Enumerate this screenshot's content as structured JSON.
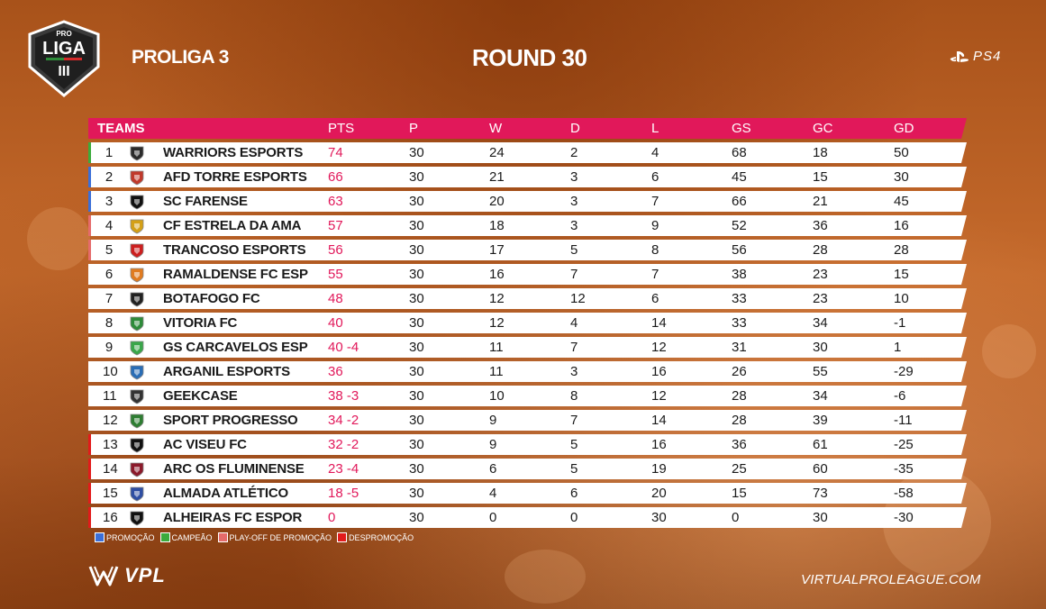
{
  "header": {
    "logo_text_top": "PRO",
    "logo_text_main": "LIGA",
    "logo_text_num": "III",
    "league_name": "PROLIGA 3",
    "round": "ROUND 30",
    "platform": "PS4"
  },
  "table": {
    "columns": {
      "teams": "TEAMS",
      "pts": "PTS",
      "p": "P",
      "w": "W",
      "d": "D",
      "l": "L",
      "gs": "GS",
      "gc": "GC",
      "gd": "GD"
    },
    "rows": [
      {
        "pos": "1",
        "team": "WARRIORS ESPORTS",
        "pts": "74",
        "p": "30",
        "w": "24",
        "d": "2",
        "l": "4",
        "gs": "68",
        "gc": "18",
        "gd": "50",
        "status": "#3cab3c",
        "crest": "#2b2b2b"
      },
      {
        "pos": "2",
        "team": "AFD TORRE ESPORTS",
        "pts": "66",
        "p": "30",
        "w": "21",
        "d": "3",
        "l": "6",
        "gs": "45",
        "gc": "15",
        "gd": "30",
        "status": "#3b6fd8",
        "crest": "#c0392b"
      },
      {
        "pos": "3",
        "team": "SC FARENSE",
        "pts": "63",
        "p": "30",
        "w": "20",
        "d": "3",
        "l": "7",
        "gs": "66",
        "gc": "21",
        "gd": "45",
        "status": "#3b6fd8",
        "crest": "#111111"
      },
      {
        "pos": "4",
        "team": "CF ESTRELA DA AMA",
        "pts": "57",
        "p": "30",
        "w": "18",
        "d": "3",
        "l": "9",
        "gs": "52",
        "gc": "36",
        "gd": "16",
        "status": "#e56b6b",
        "crest": "#d4a017"
      },
      {
        "pos": "5",
        "team": "TRANCOSO ESPORTS",
        "pts": "56",
        "p": "30",
        "w": "17",
        "d": "5",
        "l": "8",
        "gs": "56",
        "gc": "28",
        "gd": "28",
        "status": "#e56b6b",
        "crest": "#cc1f1f"
      },
      {
        "pos": "6",
        "team": "RAMALDENSE FC ESP",
        "pts": "55",
        "p": "30",
        "w": "16",
        "d": "7",
        "l": "7",
        "gs": "38",
        "gc": "23",
        "gd": "15",
        "status": "",
        "crest": "#e07b20"
      },
      {
        "pos": "7",
        "team": "BOTAFOGO FC",
        "pts": "48",
        "p": "30",
        "w": "12",
        "d": "12",
        "l": "6",
        "gs": "33",
        "gc": "23",
        "gd": "10",
        "status": "",
        "crest": "#222222"
      },
      {
        "pos": "8",
        "team": "VITORIA FC",
        "pts": "40",
        "p": "30",
        "w": "12",
        "d": "4",
        "l": "14",
        "gs": "33",
        "gc": "34",
        "gd": "-1",
        "status": "",
        "crest": "#2e8b3a"
      },
      {
        "pos": "9",
        "team": "GS CARCAVELOS ESP",
        "pts": "40 -4",
        "p": "30",
        "w": "11",
        "d": "7",
        "l": "12",
        "gs": "31",
        "gc": "30",
        "gd": "1",
        "status": "",
        "crest": "#3aa64a"
      },
      {
        "pos": "10",
        "team": "ARGANIL ESPORTS",
        "pts": "36",
        "p": "30",
        "w": "11",
        "d": "3",
        "l": "16",
        "gs": "26",
        "gc": "55",
        "gd": "-29",
        "status": "",
        "crest": "#2a6db5"
      },
      {
        "pos": "11",
        "team": "GEEKCASE",
        "pts": "38 -3",
        "p": "30",
        "w": "10",
        "d": "8",
        "l": "12",
        "gs": "28",
        "gc": "34",
        "gd": "-6",
        "status": "",
        "crest": "#333333"
      },
      {
        "pos": "12",
        "team": "SPORT PROGRESSO",
        "pts": "34 -2",
        "p": "30",
        "w": "9",
        "d": "7",
        "l": "14",
        "gs": "28",
        "gc": "39",
        "gd": "-11",
        "status": "",
        "crest": "#2e7d32"
      },
      {
        "pos": "13",
        "team": "AC VISEU FC",
        "pts": "32 -2",
        "p": "30",
        "w": "9",
        "d": "5",
        "l": "16",
        "gs": "36",
        "gc": "61",
        "gd": "-25",
        "status": "#e21b1b",
        "crest": "#111111"
      },
      {
        "pos": "14",
        "team": "ARC OS FLUMINENSE",
        "pts": "23 -4",
        "p": "30",
        "w": "6",
        "d": "5",
        "l": "19",
        "gs": "25",
        "gc": "60",
        "gd": "-35",
        "status": "#e21b1b",
        "crest": "#8b1a2b"
      },
      {
        "pos": "15",
        "team": "ALMADA ATLÉTICO",
        "pts": "18 -5",
        "p": "30",
        "w": "4",
        "d": "6",
        "l": "20",
        "gs": "15",
        "gc": "73",
        "gd": "-58",
        "status": "#e21b1b",
        "crest": "#2f4fa3"
      },
      {
        "pos": "16",
        "team": "ALHEIRAS FC ESPOR",
        "pts": "0",
        "p": "30",
        "w": "0",
        "d": "0",
        "l": "30",
        "gs": "0",
        "gc": "30",
        "gd": "-30",
        "status": "#e21b1b",
        "crest": "#111111"
      }
    ]
  },
  "legend": [
    {
      "label": "PROMOÇÃO",
      "color": "#3b6fd8"
    },
    {
      "label": "CAMPEÃO",
      "color": "#3cab3c"
    },
    {
      "label": "PLAY-OFF DE PROMOÇÃO",
      "color": "#e56b6b"
    },
    {
      "label": "DESPROMOÇÃO",
      "color": "#e21b1b"
    }
  ],
  "footer": {
    "brand": "VPL",
    "website": "VIRTUALPROLEAGUE.COM"
  }
}
